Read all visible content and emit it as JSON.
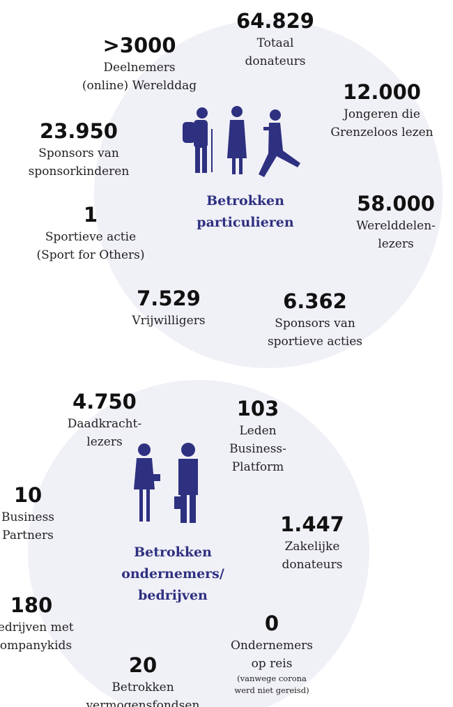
{
  "sections": [
    {
      "title": [
        "Betrokken",
        "particulieren"
      ],
      "stats": [
        {
          "value": ">3000",
          "label": [
            "Deelnemers",
            "(online) Werelddag"
          ]
        },
        {
          "value": "64.829",
          "label": [
            "Totaal",
            "donateurs"
          ]
        },
        {
          "value": "12.000",
          "label": [
            "Jongeren die",
            "Grenzeloos lezen"
          ]
        },
        {
          "value": "23.950",
          "label": [
            "Sponsors van",
            "sponsorkinderen"
          ]
        },
        {
          "value": "1",
          "label": [
            "Sportieve actie",
            "(Sport for Others)"
          ]
        },
        {
          "value": "58.000",
          "label": [
            "Werelddelen-",
            "lezers"
          ]
        },
        {
          "value": "7.529",
          "label": [
            "Vrijwilligers"
          ]
        },
        {
          "value": "6.362",
          "label": [
            "Sponsors van",
            "sportieve acties"
          ]
        }
      ]
    },
    {
      "title": [
        "Betrokken",
        "ondernemers/",
        "bedrijven"
      ],
      "stats": [
        {
          "value": "4.750",
          "label": [
            "Daadkracht-",
            "lezers"
          ]
        },
        {
          "value": "103",
          "label": [
            "Leden",
            "Business-",
            "Platform"
          ]
        },
        {
          "value": "10",
          "label": [
            "Business",
            "Partners"
          ]
        },
        {
          "value": "1.447",
          "label": [
            "Zakelijke",
            "donateurs"
          ]
        },
        {
          "value": "180",
          "label": [
            "Bedrijven met",
            "Companykids"
          ]
        },
        {
          "value": "0",
          "label": [
            "Ondernemers",
            "op reis"
          ],
          "note": [
            "(vanwege corona",
            "werd niet gereisd)"
          ]
        },
        {
          "value": "20",
          "label": [
            "Betrokken",
            "vermogensfondsen"
          ]
        }
      ]
    }
  ]
}
